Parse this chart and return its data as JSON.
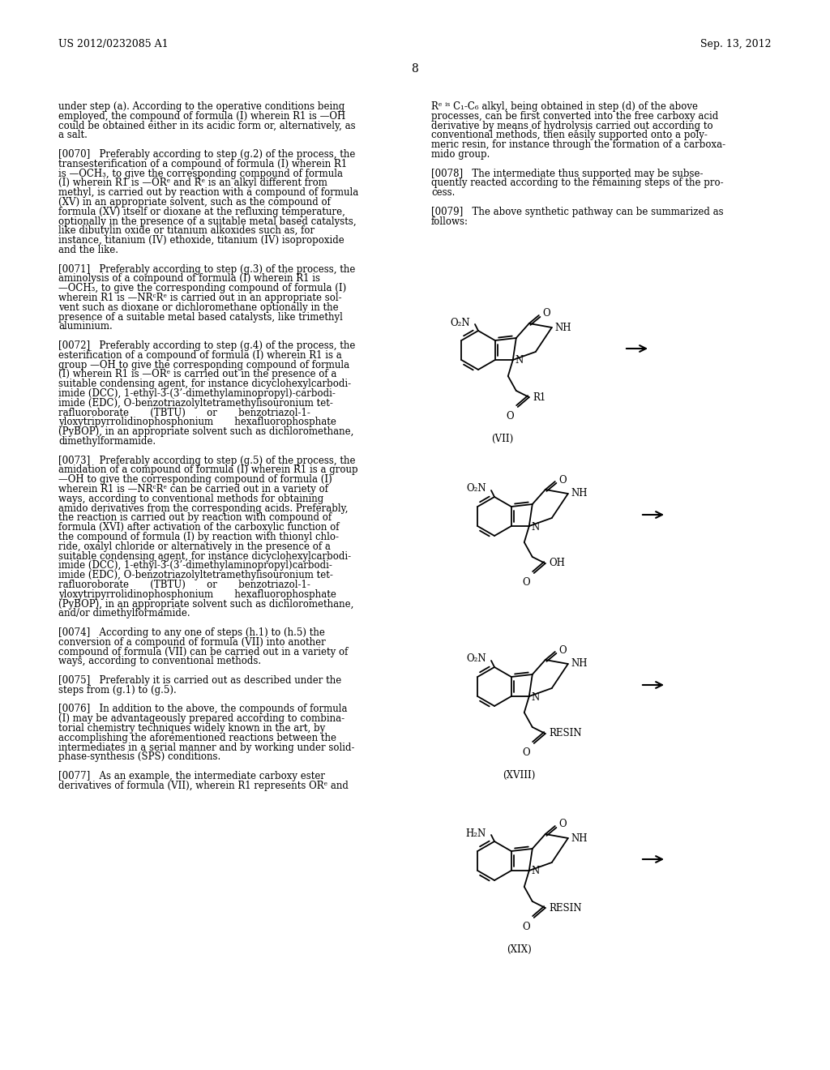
{
  "bg": "#ffffff",
  "header_left": "US 2012/0232085 A1",
  "header_right": "Sep. 13, 2012",
  "page_num": "8",
  "left_col": [
    "under step (a). According to the operative conditions being",
    "employed, the compound of formula (I) wherein R1 is —OH",
    "could be obtained either in its acidic form or, alternatively, as",
    "a salt.",
    "",
    "[0070]   Preferably according to step (g.2) of the process, the",
    "transesterification of a compound of formula (I) wherein R1",
    "is —OCH₃, to give the corresponding compound of formula",
    "(I) wherein R1 is —ORᵉ and Rᵉ is an alkyl different from",
    "methyl, is carried out by reaction with a compound of formula",
    "(XV) in an appropriate solvent, such as the compound of",
    "formula (XV) itself or dioxane at the refluxing temperature,",
    "optionally in the presence of a suitable metal based catalysts,",
    "like dibutylin oxide or titanium alkoxides such as, for",
    "instance, titanium (IV) ethoxide, titanium (IV) isopropoxide",
    "and the like.",
    "",
    "[0071]   Preferably according to step (g.3) of the process, the",
    "aminolysis of a compound of formula (I) wherein R1 is",
    "—OCH₃, to give the corresponding compound of formula (I)",
    "wherein R1 is —NRᶜRᵉ is carried out in an appropriate sol-",
    "vent such as dioxane or dichloromethane optionally in the",
    "presence of a suitable metal based catalysts, like trimethyl",
    "aluminium.",
    "",
    "[0072]   Preferably according to step (g.4) of the process, the",
    "esterification of a compound of formula (I) wherein R1 is a",
    "group —OH to give the corresponding compound of formula",
    "(I) wherein R1 is —ORᵉ is carried out in the presence of a",
    "suitable condensing agent, for instance dicyclohexylcarbodi-",
    "imide (DCC), 1-ethyl-3-(3’-dimethylaminopropyl)-carbodi-",
    "imide (EDC), O-benzotriazolyltetramethylisouronium tet-",
    "rafluoroborate       (TBTU)       or       benzotriazol-1-",
    "yloxytripyrrolidinophosphonium       hexafluorophosphate",
    "(PyBOP), in an appropriate solvent such as dichloromethane,",
    "dimethylformamide.",
    "",
    "[0073]   Preferably according to step (g.5) of the process, the",
    "amidation of a compound of formula (I) wherein R1 is a group",
    "—OH to give the corresponding compound of formula (I)",
    "wherein R1 is —NRᶜRᵉ can be carried out in a variety of",
    "ways, according to conventional methods for obtaining",
    "amido derivatives from the corresponding acids. Preferably,",
    "the reaction is carried out by reaction with compound of",
    "formula (XVI) after activation of the carboxylic function of",
    "the compound of formula (I) by reaction with thionyl chlo-",
    "ride, oxalyl chloride or alternatively in the presence of a",
    "suitable condensing agent, for instance dicyclohexylcarbodi-",
    "imide (DCC), 1-ethyl-3-(3’-dimethylaminopropyl)carbodi-",
    "imide (EDC), O-benzotriazolyltetramethylisouronium tet-",
    "rafluoroborate       (TBTU)       or       benzotriazol-1-",
    "yloxytripyrrolidinophosphonium       hexafluorophosphate",
    "(PyBOP), in an appropriate solvent such as dichloromethane,",
    "and/or dimethylformamide.",
    "",
    "[0074]   According to any one of steps (h.1) to (h.5) the",
    "conversion of a compound of formula (VII) into another",
    "compound of formula (VII) can be carried out in a variety of",
    "ways, according to conventional methods.",
    "",
    "[0075]   Preferably it is carried out as described under the",
    "steps from (g.1) to (g.5).",
    "",
    "[0076]   In addition to the above, the compounds of formula",
    "(I) may be advantageously prepared according to combina-",
    "torial chemistry techniques widely known in the art, by",
    "accomplishing the aforementioned reactions between the",
    "intermediates in a serial manner and by working under solid-",
    "phase-synthesis (SPS) conditions.",
    "",
    "[0077]   As an example, the intermediate carboxy ester",
    "derivatives of formula (VII), wherein R1 represents ORᵉ and"
  ],
  "right_col_text": [
    "Rᵉ ⁱˢ C₁-C₆ alkyl, being obtained in step (d) of the above",
    "processes, can be first converted into the free carboxy acid",
    "derivative by means of hydrolysis carried out according to",
    "conventional methods, then easily supported onto a poly-",
    "meric resin, for instance through the formation of a carboxa-",
    "mido group.",
    "",
    "[0078]   The intermediate thus supported may be subse-",
    "quently reacted according to the remaining steps of the pro-",
    "cess.",
    "",
    "[0079]   The above synthetic pathway can be summarized as",
    "follows:"
  ]
}
